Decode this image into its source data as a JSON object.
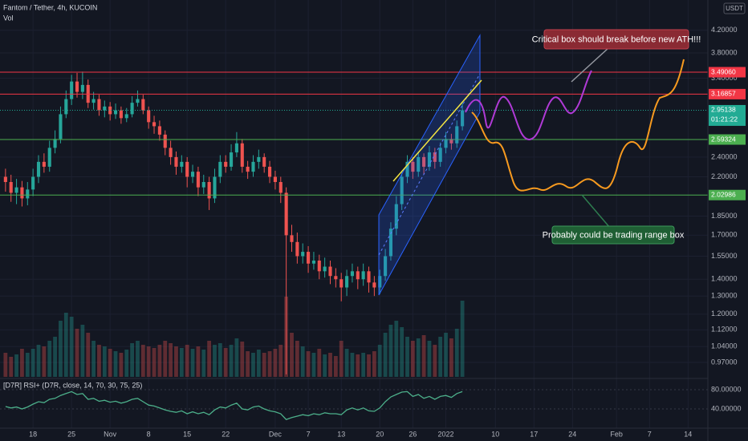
{
  "chart_data": {
    "type": "candlestick",
    "title": "Fantom / Tether, 4h, KUCOIN",
    "volume_label": "Vol",
    "currency": "USDT",
    "log_scale": true,
    "grid": true,
    "up_color": "#26a69a",
    "down_color": "#ef5350",
    "x": [
      -5,
      -4,
      -3,
      -2,
      -1,
      0,
      1,
      2,
      3,
      4,
      5,
      6,
      7,
      8,
      9,
      10,
      11,
      12,
      13,
      14,
      15,
      16,
      17,
      18,
      19,
      20,
      21,
      22,
      23,
      24,
      25,
      26,
      27,
      28,
      29,
      30,
      31,
      32,
      33,
      34,
      35,
      36,
      37,
      38,
      39,
      40,
      41,
      42,
      43,
      44,
      45,
      46,
      47,
      48,
      49,
      50,
      51,
      52,
      53,
      54,
      55,
      56,
      57,
      58,
      59,
      60,
      61,
      62,
      63,
      64,
      65,
      66,
      67,
      68,
      69,
      70,
      71,
      72,
      73,
      74,
      75,
      76,
      77,
      78
    ],
    "open": [
      2.2,
      2.15,
      2.05,
      2.1,
      2.0,
      2.08,
      2.2,
      2.35,
      2.3,
      2.5,
      2.6,
      2.9,
      3.1,
      3.35,
      3.2,
      3.3,
      3.05,
      3.1,
      2.95,
      3.0,
      2.9,
      2.95,
      2.85,
      2.9,
      3.05,
      3.1,
      2.95,
      2.8,
      2.75,
      2.65,
      2.5,
      2.4,
      2.3,
      2.35,
      2.2,
      2.25,
      2.1,
      2.15,
      2.0,
      2.2,
      2.35,
      2.3,
      2.45,
      2.55,
      2.3,
      2.25,
      2.35,
      2.4,
      2.3,
      2.2,
      2.15,
      2.05,
      1.7,
      1.65,
      1.55,
      1.58,
      1.5,
      1.52,
      1.45,
      1.48,
      1.42,
      1.4,
      1.35,
      1.42,
      1.45,
      1.4,
      1.45,
      1.38,
      1.35,
      1.42,
      1.55,
      1.75,
      1.95,
      2.2,
      2.35,
      2.25,
      2.4,
      2.3,
      2.45,
      2.35,
      2.5,
      2.6,
      2.55,
      2.75
    ],
    "high": [
      2.28,
      2.22,
      2.18,
      2.16,
      2.15,
      2.28,
      2.42,
      2.44,
      2.58,
      2.7,
      3.0,
      3.22,
      3.45,
      3.48,
      3.5,
      3.38,
      3.2,
      3.16,
      3.08,
      3.06,
      3.04,
      3.0,
      2.98,
      3.14,
      3.22,
      3.16,
      3.0,
      2.88,
      2.82,
      2.7,
      2.58,
      2.46,
      2.42,
      2.4,
      2.32,
      2.3,
      2.22,
      2.2,
      2.28,
      2.42,
      2.42,
      2.54,
      2.68,
      2.6,
      2.36,
      2.42,
      2.48,
      2.44,
      2.36,
      2.26,
      2.2,
      2.1,
      1.78,
      1.72,
      1.64,
      1.62,
      1.58,
      1.56,
      1.54,
      1.52,
      1.47,
      1.44,
      1.46,
      1.5,
      1.48,
      1.5,
      1.48,
      1.42,
      1.46,
      1.6,
      1.8,
      2.02,
      2.26,
      2.42,
      2.4,
      2.46,
      2.44,
      2.52,
      2.5,
      2.56,
      2.68,
      2.66,
      2.82,
      3.05
    ],
    "low": [
      2.06,
      1.97,
      1.95,
      1.93,
      1.94,
      2.02,
      2.14,
      2.24,
      2.25,
      2.44,
      2.55,
      2.85,
      3.02,
      3.12,
      3.1,
      2.98,
      2.96,
      2.88,
      2.86,
      2.82,
      2.84,
      2.78,
      2.8,
      2.86,
      3.0,
      2.9,
      2.72,
      2.66,
      2.58,
      2.42,
      2.32,
      2.22,
      2.24,
      2.1,
      2.14,
      2.02,
      2.04,
      1.9,
      1.96,
      2.14,
      2.24,
      2.26,
      2.4,
      2.24,
      2.18,
      2.2,
      2.28,
      2.24,
      2.14,
      2.08,
      1.96,
      0.92,
      1.58,
      1.5,
      1.5,
      1.44,
      1.46,
      1.4,
      1.41,
      1.37,
      1.35,
      1.27,
      1.3,
      1.38,
      1.34,
      1.36,
      1.32,
      1.3,
      1.31,
      1.39,
      1.52,
      1.7,
      1.9,
      2.14,
      2.18,
      2.2,
      2.22,
      2.26,
      2.28,
      2.3,
      2.44,
      2.48,
      2.5,
      2.7
    ],
    "close": [
      2.15,
      2.05,
      2.1,
      2.0,
      2.08,
      2.2,
      2.35,
      2.3,
      2.5,
      2.6,
      2.9,
      3.1,
      3.35,
      3.2,
      3.3,
      3.05,
      3.1,
      2.95,
      3.0,
      2.9,
      2.95,
      2.85,
      2.9,
      3.05,
      3.1,
      2.95,
      2.8,
      2.75,
      2.65,
      2.5,
      2.4,
      2.3,
      2.35,
      2.2,
      2.25,
      2.1,
      2.15,
      2.0,
      2.2,
      2.35,
      2.3,
      2.45,
      2.55,
      2.3,
      2.25,
      2.35,
      2.4,
      2.3,
      2.2,
      2.15,
      2.05,
      1.7,
      1.65,
      1.55,
      1.58,
      1.5,
      1.52,
      1.45,
      1.48,
      1.42,
      1.4,
      1.35,
      1.42,
      1.45,
      1.4,
      1.45,
      1.38,
      1.35,
      1.42,
      1.55,
      1.75,
      1.95,
      2.2,
      2.35,
      2.25,
      2.4,
      2.3,
      2.45,
      2.35,
      2.5,
      2.6,
      2.55,
      2.75,
      2.95
    ],
    "volume": [
      30,
      25,
      28,
      35,
      30,
      35,
      40,
      38,
      45,
      50,
      70,
      80,
      75,
      60,
      65,
      55,
      45,
      40,
      38,
      35,
      32,
      30,
      34,
      42,
      45,
      40,
      38,
      36,
      40,
      45,
      42,
      38,
      36,
      40,
      35,
      38,
      34,
      45,
      40,
      42,
      36,
      40,
      48,
      44,
      32,
      30,
      34,
      30,
      32,
      35,
      40,
      100,
      55,
      45,
      38,
      32,
      30,
      35,
      28,
      30,
      26,
      45,
      35,
      30,
      28,
      30,
      28,
      32,
      40,
      55,
      65,
      70,
      62,
      50,
      45,
      48,
      52,
      45,
      40,
      50,
      55,
      48,
      60,
      95
    ],
    "xlim": [
      -6,
      122.6
    ],
    "ylim": [
      0.91,
      4.8
    ],
    "xticks": [
      {
        "value": 0,
        "label": "18"
      },
      {
        "value": 7,
        "label": "25"
      },
      {
        "value": 14,
        "label": "Nov"
      },
      {
        "value": 21,
        "label": "8"
      },
      {
        "value": 28,
        "label": "15"
      },
      {
        "value": 35,
        "label": "22"
      },
      {
        "value": 44,
        "label": "Dec"
      },
      {
        "value": 50,
        "label": "7"
      },
      {
        "value": 56,
        "label": "13"
      },
      {
        "value": 63,
        "label": "20"
      },
      {
        "value": 69,
        "label": "26"
      },
      {
        "value": 75,
        "label": "2022"
      },
      {
        "value": 84,
        "label": "10"
      },
      {
        "value": 91,
        "label": "17"
      },
      {
        "value": 98,
        "label": "24"
      },
      {
        "value": 106,
        "label": "Feb"
      },
      {
        "value": 112,
        "label": "7"
      },
      {
        "value": 119,
        "label": "14"
      }
    ],
    "yticks": [
      {
        "value": 4.2,
        "label": "4.20000"
      },
      {
        "value": 3.8,
        "label": "3.80000"
      },
      {
        "value": 3.4,
        "label": "3.40000"
      },
      {
        "value": 2.4,
        "label": "2.40000"
      },
      {
        "value": 2.2,
        "label": "2.20000"
      },
      {
        "value": 1.85,
        "label": "1.85000"
      },
      {
        "value": 1.7,
        "label": "1.70000"
      },
      {
        "value": 1.55,
        "label": "1.55000"
      },
      {
        "value": 1.4,
        "label": "1.40000"
      },
      {
        "value": 1.3,
        "label": "1.30000"
      },
      {
        "value": 1.2,
        "label": "1.20000"
      },
      {
        "value": 1.12,
        "label": "1.12000"
      },
      {
        "value": 1.04,
        "label": "1.04000"
      },
      {
        "value": 0.97,
        "label": "0.97000"
      }
    ],
    "levels": [
      {
        "value": 3.4906,
        "label": "3.49060",
        "color": "#f23645"
      },
      {
        "value": 3.16857,
        "label": "3.16857",
        "color": "#f23645"
      },
      {
        "value": 2.59324,
        "label": "2.59324",
        "color": "#4caf50"
      },
      {
        "value": 2.02986,
        "label": "2.02986",
        "color": "#4caf50"
      }
    ],
    "last_price": {
      "value": 2.95138,
      "label": "2.95138",
      "countdown": "01:21:22",
      "color": "#22ab94"
    },
    "annotations": [
      {
        "text": "Critical box should break before new ATH!!!",
        "color": "#8a2a33"
      },
      {
        "text": "Probably could be trading range box",
        "color": "#1f5f34"
      }
    ],
    "rsi": {
      "label": "[D7R] RSI+ (D7R, close, 14, 70, 30, 75, 25)",
      "color": "#4caf8a",
      "values": [
        45,
        42,
        44,
        40,
        44,
        50,
        55,
        53,
        60,
        62,
        68,
        72,
        76,
        70,
        72,
        60,
        62,
        56,
        58,
        54,
        56,
        52,
        55,
        60,
        62,
        55,
        48,
        46,
        42,
        38,
        35,
        33,
        36,
        30,
        34,
        30,
        33,
        28,
        38,
        44,
        42,
        48,
        52,
        40,
        38,
        44,
        46,
        40,
        36,
        34,
        30,
        18,
        22,
        25,
        28,
        26,
        30,
        28,
        32,
        30,
        30,
        28,
        38,
        42,
        38,
        42,
        36,
        35,
        42,
        55,
        65,
        70,
        75,
        76,
        66,
        70,
        62,
        66,
        60,
        66,
        68,
        64,
        72,
        76
      ],
      "ylim": [
        0,
        100
      ],
      "yticks": [
        {
          "value": 80,
          "label": "80.00000"
        },
        {
          "value": 40,
          "label": "40.00000"
        }
      ]
    }
  }
}
